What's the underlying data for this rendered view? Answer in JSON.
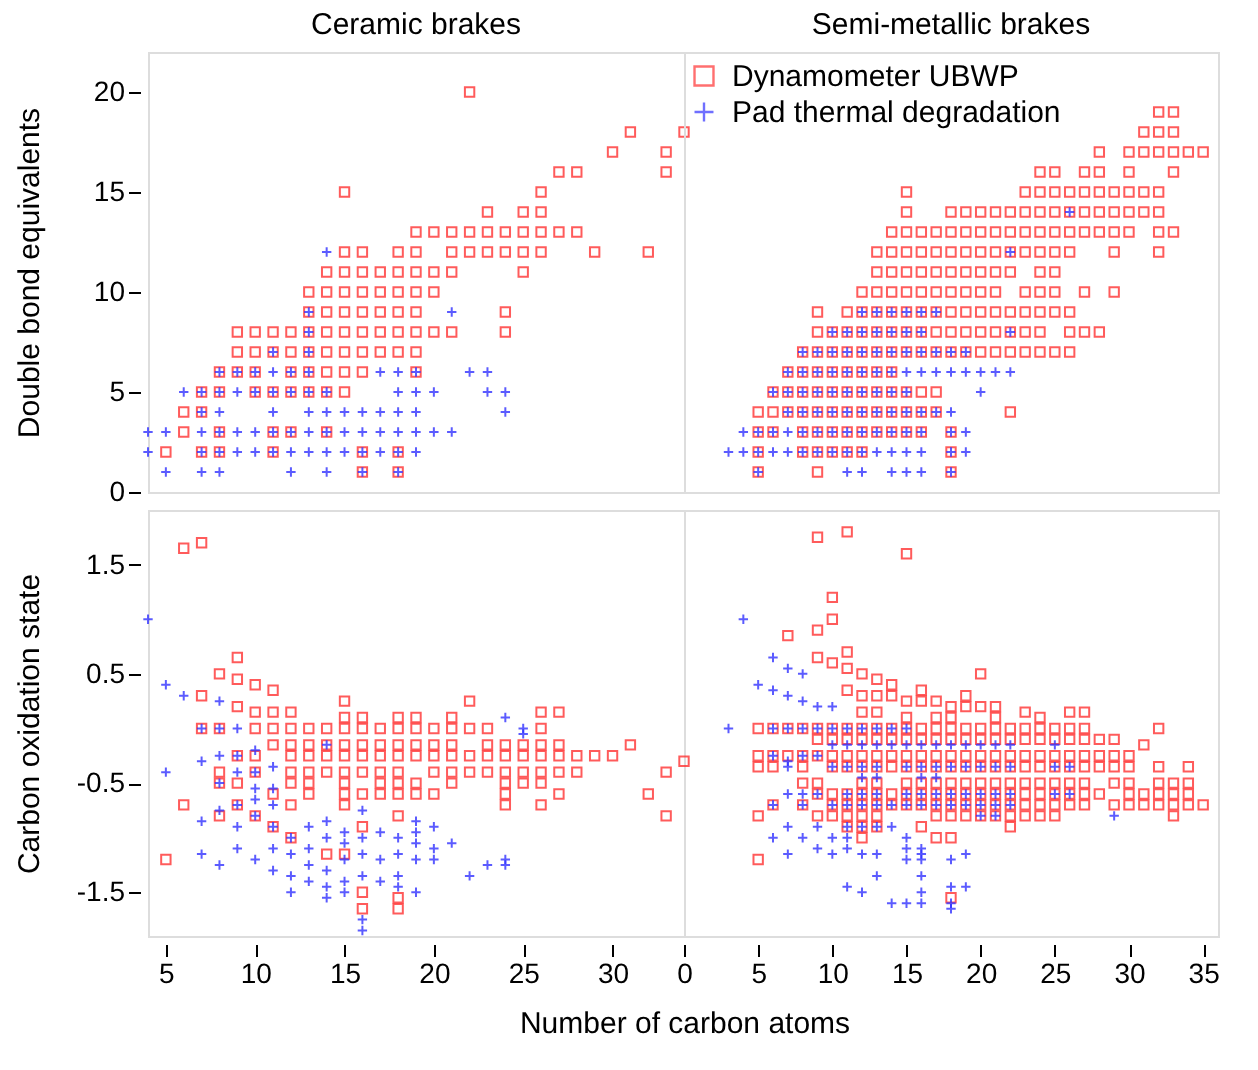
{
  "chart_data": [
    {
      "type": "scatter",
      "title": "Ceramic brakes",
      "ylabel": "Double bond equivalents",
      "xlim": [
        4,
        34
      ],
      "ylim": [
        0,
        22
      ],
      "yticks": [
        0,
        5,
        10,
        15,
        20
      ],
      "tick_labels": "y",
      "series": [
        {
          "color": "#ff3333",
          "marker": "square",
          "x": [
            22,
            31,
            34,
            30,
            33,
            27,
            28,
            33,
            15,
            26,
            23,
            25,
            26,
            19,
            20,
            21,
            22,
            23,
            24,
            25,
            26,
            27,
            28,
            15,
            16,
            18,
            19,
            21,
            22,
            23,
            24,
            25,
            26,
            29,
            32,
            14,
            15,
            16,
            17,
            18,
            19,
            20,
            21,
            25,
            13,
            14,
            15,
            16,
            17,
            18,
            19,
            20,
            13,
            14,
            15,
            16,
            17,
            18,
            19,
            24,
            9,
            10,
            11,
            12,
            13,
            14,
            15,
            16,
            17,
            18,
            19,
            20,
            21,
            24,
            9,
            10,
            11,
            12,
            13,
            14,
            15,
            16,
            17,
            18,
            19,
            8,
            9,
            10,
            12,
            13,
            14,
            15,
            16,
            19,
            7,
            8,
            10,
            11,
            12,
            13,
            14,
            15,
            6,
            7,
            6,
            8,
            11,
            12,
            14,
            5,
            7,
            8,
            11,
            16,
            18,
            16,
            18
          ],
          "values": [
            20,
            18,
            18,
            17,
            17,
            16,
            16,
            16,
            15,
            15,
            14,
            14,
            14,
            13,
            13,
            13,
            13,
            13,
            13,
            13,
            13,
            13,
            13,
            12,
            12,
            12,
            12,
            12,
            12,
            12,
            12,
            12,
            12,
            12,
            12,
            11,
            11,
            11,
            11,
            11,
            11,
            11,
            11,
            11,
            10,
            10,
            10,
            10,
            10,
            10,
            10,
            10,
            9,
            9,
            9,
            9,
            9,
            9,
            9,
            9,
            8,
            8,
            8,
            8,
            8,
            8,
            8,
            8,
            8,
            8,
            8,
            8,
            8,
            8,
            7,
            7,
            7,
            7,
            7,
            7,
            7,
            7,
            7,
            7,
            7,
            6,
            6,
            6,
            6,
            6,
            6,
            6,
            6,
            6,
            5,
            5,
            5,
            5,
            5,
            5,
            5,
            5,
            4,
            4,
            3,
            3,
            3,
            3,
            3,
            2,
            2,
            2,
            2,
            2,
            2,
            1,
            1
          ]
        },
        {
          "color": "#3333ff",
          "marker": "cross",
          "x": [
            14,
            13,
            21,
            13,
            11,
            13,
            8,
            9,
            10,
            11,
            12,
            13,
            17,
            18,
            19,
            22,
            23,
            6,
            7,
            8,
            9,
            10,
            11,
            12,
            13,
            14,
            18,
            19,
            20,
            23,
            24,
            7,
            8,
            11,
            13,
            14,
            15,
            16,
            17,
            18,
            19,
            24,
            4,
            5,
            7,
            8,
            9,
            10,
            11,
            12,
            13,
            14,
            15,
            16,
            17,
            18,
            19,
            20,
            21,
            4,
            7,
            8,
            9,
            10,
            11,
            12,
            13,
            14,
            15,
            16,
            17,
            18,
            19,
            5,
            7,
            8,
            12,
            14,
            16,
            18
          ],
          "values": [
            12,
            9,
            9,
            8,
            7,
            7,
            6,
            6,
            6,
            6,
            6,
            6,
            6,
            6,
            6,
            6,
            6,
            5,
            5,
            5,
            5,
            5,
            5,
            5,
            5,
            5,
            5,
            5,
            5,
            5,
            5,
            4,
            4,
            4,
            4,
            4,
            4,
            4,
            4,
            4,
            4,
            4,
            3,
            3,
            3,
            3,
            3,
            3,
            3,
            3,
            3,
            3,
            3,
            3,
            3,
            3,
            3,
            3,
            3,
            2,
            2,
            2,
            2,
            2,
            2,
            2,
            2,
            2,
            2,
            2,
            2,
            2,
            2,
            1,
            1,
            1,
            1,
            1,
            1,
            1
          ]
        }
      ]
    },
    {
      "type": "scatter",
      "title": "Semi-metallic brakes",
      "xlim": [
        0,
        36
      ],
      "ylim": [
        0,
        22
      ],
      "tick_labels": false,
      "legend": "top left",
      "series": [
        {
          "name": "Dynamometer UBWP",
          "color": "#ff3333",
          "marker": "square",
          "x": [
            32,
            33,
            31,
            32,
            33,
            28,
            30,
            31,
            32,
            33,
            34,
            35,
            24,
            25,
            27,
            28,
            30,
            33,
            15,
            23,
            24,
            25,
            26,
            27,
            28,
            29,
            30,
            31,
            32,
            15,
            18,
            19,
            20,
            21,
            22,
            23,
            24,
            25,
            26,
            27,
            28,
            29,
            30,
            31,
            32,
            14,
            15,
            16,
            17,
            18,
            19,
            20,
            21,
            22,
            23,
            24,
            25,
            26,
            27,
            28,
            29,
            30,
            32,
            33,
            13,
            14,
            15,
            16,
            17,
            18,
            19,
            20,
            21,
            22,
            23,
            24,
            25,
            26,
            29,
            32,
            13,
            14,
            15,
            16,
            17,
            18,
            19,
            20,
            21,
            22,
            24,
            25,
            12,
            13,
            14,
            15,
            16,
            17,
            18,
            19,
            20,
            21,
            23,
            24,
            25,
            27,
            29,
            9,
            11,
            12,
            13,
            14,
            15,
            16,
            17,
            18,
            19,
            20,
            21,
            22,
            23,
            24,
            25,
            26,
            9,
            10,
            11,
            12,
            13,
            14,
            15,
            16,
            17,
            18,
            19,
            20,
            21,
            22,
            23,
            24,
            26,
            27,
            28,
            8,
            9,
            10,
            11,
            12,
            13,
            14,
            15,
            16,
            17,
            18,
            19,
            20,
            21,
            22,
            23,
            24,
            25,
            26,
            7,
            8,
            9,
            10,
            11,
            12,
            13,
            14,
            6,
            7,
            8,
            9,
            10,
            11,
            12,
            13,
            14,
            15,
            16,
            17,
            5,
            6,
            7,
            8,
            9,
            10,
            11,
            12,
            13,
            14,
            15,
            16,
            17,
            22,
            5,
            6,
            8,
            9,
            10,
            11,
            12,
            13,
            14,
            15,
            16,
            18,
            5,
            8,
            9,
            10,
            11,
            12,
            18,
            5,
            9,
            18
          ],
          "values": [
            19,
            19,
            18,
            18,
            18,
            17,
            17,
            17,
            17,
            17,
            17,
            17,
            16,
            16,
            16,
            16,
            16,
            16,
            15,
            15,
            15,
            15,
            15,
            15,
            15,
            15,
            15,
            15,
            15,
            14,
            14,
            14,
            14,
            14,
            14,
            14,
            14,
            14,
            14,
            14,
            14,
            14,
            14,
            14,
            14,
            13,
            13,
            13,
            13,
            13,
            13,
            13,
            13,
            13,
            13,
            13,
            13,
            13,
            13,
            13,
            13,
            13,
            13,
            13,
            12,
            12,
            12,
            12,
            12,
            12,
            12,
            12,
            12,
            12,
            12,
            12,
            12,
            12,
            12,
            12,
            11,
            11,
            11,
            11,
            11,
            11,
            11,
            11,
            11,
            11,
            11,
            11,
            10,
            10,
            10,
            10,
            10,
            10,
            10,
            10,
            10,
            10,
            10,
            10,
            10,
            10,
            10,
            9,
            9,
            9,
            9,
            9,
            9,
            9,
            9,
            9,
            9,
            9,
            9,
            9,
            9,
            9,
            9,
            9,
            8,
            8,
            8,
            8,
            8,
            8,
            8,
            8,
            8,
            8,
            8,
            8,
            8,
            8,
            8,
            8,
            8,
            8,
            8,
            7,
            7,
            7,
            7,
            7,
            7,
            7,
            7,
            7,
            7,
            7,
            7,
            7,
            7,
            7,
            7,
            7,
            7,
            7,
            6,
            6,
            6,
            6,
            6,
            6,
            6,
            6,
            5,
            5,
            5,
            5,
            5,
            5,
            5,
            5,
            5,
            5,
            5,
            5,
            4,
            4,
            4,
            4,
            4,
            4,
            4,
            4,
            4,
            4,
            4,
            4,
            4,
            4,
            3,
            3,
            3,
            3,
            3,
            3,
            3,
            3,
            3,
            3,
            3,
            3,
            2,
            2,
            2,
            2,
            2,
            2,
            2,
            1,
            1,
            1
          ]
        },
        {
          "name": "Pad thermal degradation",
          "color": "#3333ff",
          "marker": "cross",
          "x": [
            26,
            22,
            12,
            13,
            14,
            15,
            16,
            17,
            10,
            11,
            12,
            13,
            14,
            15,
            16,
            22,
            8,
            9,
            10,
            11,
            12,
            13,
            14,
            15,
            16,
            17,
            18,
            19,
            7,
            8,
            9,
            10,
            11,
            12,
            13,
            14,
            15,
            16,
            17,
            18,
            19,
            20,
            21,
            22,
            6,
            7,
            8,
            9,
            10,
            11,
            12,
            13,
            14,
            15,
            20,
            7,
            8,
            9,
            10,
            11,
            12,
            13,
            14,
            15,
            16,
            17,
            18,
            4,
            5,
            6,
            7,
            8,
            9,
            10,
            11,
            12,
            13,
            14,
            15,
            16,
            18,
            19,
            3,
            4,
            5,
            6,
            7,
            8,
            9,
            10,
            11,
            12,
            13,
            14,
            15,
            16,
            18,
            19,
            5,
            11,
            12,
            14,
            15,
            16,
            18
          ],
          "values": [
            14,
            12,
            9,
            9,
            9,
            9,
            9,
            9,
            8,
            8,
            8,
            8,
            8,
            8,
            8,
            8,
            7,
            7,
            7,
            7,
            7,
            7,
            7,
            7,
            7,
            7,
            7,
            7,
            6,
            6,
            6,
            6,
            6,
            6,
            6,
            6,
            6,
            6,
            6,
            6,
            6,
            6,
            6,
            6,
            5,
            5,
            5,
            5,
            5,
            5,
            5,
            5,
            5,
            5,
            5,
            4,
            4,
            4,
            4,
            4,
            4,
            4,
            4,
            4,
            4,
            4,
            4,
            3,
            3,
            3,
            3,
            3,
            3,
            3,
            3,
            3,
            3,
            3,
            3,
            3,
            3,
            3,
            2,
            2,
            2,
            2,
            2,
            2,
            2,
            2,
            2,
            2,
            2,
            2,
            2,
            2,
            2,
            2,
            1,
            1,
            1,
            1,
            1,
            1,
            1
          ]
        }
      ]
    },
    {
      "type": "scatter",
      "ylabel": "Carbon oxidation state",
      "xlim": [
        4,
        34
      ],
      "ylim": [
        -1.9,
        2
      ],
      "xticks": [
        5,
        10,
        15,
        20,
        25,
        30
      ],
      "yticks": [
        -1.5,
        -0.5,
        0.5,
        1.5
      ],
      "series": [
        {
          "color": "#ff3333",
          "marker": "square",
          "x": [
            6,
            7,
            9,
            8,
            9,
            7,
            10,
            11,
            9,
            10,
            11,
            12,
            15,
            15,
            16,
            18,
            19,
            22,
            21,
            26,
            27,
            7,
            8,
            10,
            11,
            12,
            13,
            14,
            15,
            16,
            17,
            18,
            19,
            20,
            21,
            22,
            23,
            26,
            11,
            12,
            13,
            14,
            15,
            16,
            17,
            18,
            19,
            20,
            21,
            23,
            24,
            25,
            26,
            27,
            31,
            9,
            10,
            12,
            13,
            14,
            15,
            16,
            17,
            18,
            19,
            20,
            21,
            22,
            23,
            24,
            25,
            26,
            27,
            28,
            29,
            30,
            8,
            10,
            12,
            13,
            14,
            15,
            16,
            17,
            18,
            20,
            21,
            22,
            23,
            24,
            25,
            26,
            27,
            28,
            33,
            8,
            9,
            12,
            13,
            15,
            17,
            18,
            19,
            21,
            24,
            25,
            26,
            11,
            13,
            15,
            16,
            17,
            18,
            19,
            20,
            24,
            27,
            32,
            6,
            9,
            12,
            15,
            24,
            26,
            8,
            10,
            18,
            33,
            11,
            16,
            12,
            14,
            15,
            5,
            16,
            18,
            16,
            18
          ],
          "values": [
            1.65,
            1.7,
            0.65,
            0.5,
            0.45,
            0.3,
            0.4,
            0.35,
            0.2,
            0.15,
            0.15,
            0.15,
            0.25,
            0.1,
            0.1,
            0.1,
            0.1,
            0.25,
            0.1,
            0.15,
            0.15,
            0,
            0,
            0,
            0,
            0,
            0,
            0,
            0,
            0,
            0,
            0,
            0,
            0,
            0,
            0,
            0,
            0,
            -0.15,
            -0.15,
            -0.15,
            -0.15,
            -0.15,
            -0.15,
            -0.15,
            -0.15,
            -0.15,
            -0.15,
            -0.15,
            -0.15,
            -0.15,
            -0.15,
            -0.15,
            -0.15,
            -0.15,
            -0.25,
            -0.25,
            -0.25,
            -0.25,
            -0.25,
            -0.25,
            -0.25,
            -0.25,
            -0.25,
            -0.25,
            -0.25,
            -0.25,
            -0.25,
            -0.25,
            -0.25,
            -0.25,
            -0.25,
            -0.25,
            -0.25,
            -0.25,
            -0.25,
            -0.4,
            -0.4,
            -0.4,
            -0.4,
            -0.4,
            -0.4,
            -0.4,
            -0.4,
            -0.4,
            -0.4,
            -0.4,
            -0.4,
            -0.4,
            -0.4,
            -0.4,
            -0.4,
            -0.4,
            -0.4,
            -0.4,
            -0.5,
            -0.5,
            -0.5,
            -0.5,
            -0.5,
            -0.5,
            -0.5,
            -0.5,
            -0.5,
            -0.5,
            -0.5,
            -0.5,
            -0.6,
            -0.6,
            -0.6,
            -0.6,
            -0.6,
            -0.6,
            -0.6,
            -0.6,
            -0.6,
            -0.6,
            -0.6,
            -0.7,
            -0.7,
            -0.7,
            -0.7,
            -0.7,
            -0.7,
            -0.8,
            -0.8,
            -0.8,
            -0.8,
            -0.9,
            -0.9,
            -1,
            -1.15,
            -1.15,
            -1.2,
            -1.5,
            -1.55,
            -1.65,
            -1.65
          ]
        },
        {
          "color": "#3333ff",
          "marker": "cross",
          "x": [
            4,
            5,
            6,
            8,
            7,
            7,
            5,
            8,
            9,
            8,
            9,
            10,
            9,
            10,
            11,
            8,
            10,
            11,
            8,
            9,
            10,
            11,
            7,
            9,
            10,
            11,
            7,
            8,
            9,
            10,
            11,
            11,
            12,
            12,
            12,
            12,
            13,
            13,
            13,
            13,
            14,
            14,
            14,
            14,
            14,
            14,
            15,
            15,
            15,
            15,
            15,
            16,
            16,
            16,
            16,
            16,
            17,
            17,
            17,
            18,
            18,
            18,
            18,
            19,
            19,
            19,
            19,
            19,
            20,
            20,
            20,
            21,
            22,
            23,
            24,
            24,
            24,
            25,
            25,
            16
          ],
          "values": [
            1,
            0.4,
            0.3,
            0.25,
            0,
            -0.3,
            -0.4,
            0,
            0,
            -0.25,
            -0.25,
            -0.2,
            -0.4,
            -0.4,
            -0.35,
            -0.5,
            -0.55,
            -0.55,
            -0.75,
            -0.7,
            -0.65,
            -0.7,
            -0.85,
            -0.9,
            -0.8,
            -0.9,
            -1.15,
            -1.25,
            -1.1,
            -1.2,
            -1.1,
            -1.3,
            -1,
            -1.15,
            -1.35,
            -1.5,
            -0.9,
            -1.1,
            -1.25,
            -1.4,
            -0.85,
            -1,
            -1.3,
            -1.45,
            -1.55,
            -0.15,
            -0.95,
            -1.05,
            -1.2,
            -1.4,
            -1.5,
            -0.75,
            -1,
            -1.15,
            -1.35,
            -1.75,
            -0.95,
            -1.2,
            -1.4,
            -1,
            -1.15,
            -1.35,
            -1.45,
            -0.85,
            -0.95,
            -1.05,
            -1.2,
            -1.5,
            -0.9,
            -1.1,
            -1.2,
            -1.05,
            -1.35,
            -1.25,
            -1.2,
            -1.25,
            0.1,
            0,
            -0.05,
            -1.85
          ]
        }
      ]
    },
    {
      "type": "scatter",
      "xlabel": "Number of carbon atoms",
      "xlim": [
        0,
        36
      ],
      "ylim": [
        -1.9,
        2
      ],
      "xticks": [
        0,
        5,
        10,
        15,
        20,
        25,
        30,
        35
      ],
      "tick_labels": "x",
      "series": [
        {
          "color": "#ff3333",
          "marker": "square",
          "x": [
            9,
            11,
            15,
            10,
            10,
            7,
            9,
            9,
            11,
            10,
            11,
            20,
            11,
            12,
            13,
            14,
            16,
            19,
            19,
            16,
            17,
            18,
            15,
            13,
            12,
            14,
            15,
            12,
            13,
            17,
            18,
            20,
            21,
            21,
            23,
            24,
            26,
            27,
            32,
            31,
            0,
            5,
            6,
            7,
            8,
            9,
            10,
            11,
            12,
            13,
            14,
            15,
            16,
            17,
            18,
            19,
            20,
            21,
            22,
            23,
            24,
            25,
            26,
            27,
            9,
            10,
            11,
            12,
            13,
            14,
            15,
            16,
            17,
            18,
            19,
            20,
            21,
            22,
            23,
            24,
            25,
            26,
            27,
            28,
            29,
            5,
            6,
            7,
            8,
            9,
            10,
            11,
            12,
            13,
            14,
            15,
            16,
            17,
            18,
            19,
            20,
            21,
            22,
            23,
            24,
            25,
            26,
            27,
            28,
            29,
            30,
            5,
            6,
            8,
            10,
            11,
            12,
            13,
            14,
            15,
            16,
            17,
            18,
            19,
            20,
            21,
            22,
            23,
            24,
            25,
            26,
            27,
            28,
            29,
            30,
            32,
            34,
            8,
            9,
            12,
            13,
            15,
            16,
            17,
            18,
            19,
            20,
            21,
            22,
            23,
            24,
            25,
            26,
            27,
            29,
            30,
            32,
            33,
            34,
            9,
            10,
            11,
            12,
            13,
            14,
            15,
            16,
            17,
            18,
            19,
            20,
            21,
            22,
            23,
            24,
            25,
            26,
            27,
            28,
            30,
            31,
            32,
            33,
            34,
            6,
            8,
            10,
            11,
            12,
            13,
            14,
            15,
            16,
            17,
            18,
            19,
            20,
            21,
            22,
            23,
            24,
            25,
            26,
            27,
            29,
            30,
            31,
            32,
            33,
            34,
            35,
            5,
            9,
            10,
            11,
            12,
            13,
            17,
            18,
            19,
            20,
            21,
            22,
            23,
            24,
            25,
            33,
            11,
            12,
            13,
            16,
            22,
            12,
            17,
            18,
            5,
            18
          ],
          "values": [
            1.75,
            1.8,
            1.6,
            1.2,
            1,
            0.85,
            0.9,
            0.65,
            0.7,
            0.6,
            0.55,
            0.5,
            0.35,
            0.5,
            0.45,
            0.4,
            0.35,
            0.3,
            0.2,
            0.25,
            0.25,
            0.2,
            0.25,
            0.3,
            0.3,
            0.3,
            0.1,
            0.15,
            0.15,
            0.1,
            0.1,
            0.2,
            0.2,
            0.1,
            0.15,
            0.1,
            0.15,
            0.15,
            0,
            -0.15,
            -0.3,
            0,
            0,
            0,
            0,
            0,
            0,
            0,
            0,
            0,
            0,
            0,
            0,
            0,
            0,
            0,
            0,
            0,
            0,
            0,
            0,
            0,
            0,
            0,
            -0.1,
            -0.1,
            -0.1,
            -0.1,
            -0.1,
            -0.1,
            -0.1,
            -0.1,
            -0.1,
            -0.1,
            -0.1,
            -0.1,
            -0.1,
            -0.1,
            -0.1,
            -0.1,
            -0.1,
            -0.1,
            -0.1,
            -0.1,
            -0.1,
            -0.25,
            -0.25,
            -0.25,
            -0.25,
            -0.25,
            -0.25,
            -0.25,
            -0.25,
            -0.25,
            -0.25,
            -0.25,
            -0.25,
            -0.25,
            -0.25,
            -0.25,
            -0.25,
            -0.25,
            -0.25,
            -0.25,
            -0.25,
            -0.25,
            -0.25,
            -0.25,
            -0.25,
            -0.25,
            -0.25,
            -0.35,
            -0.35,
            -0.35,
            -0.35,
            -0.35,
            -0.35,
            -0.35,
            -0.35,
            -0.35,
            -0.35,
            -0.35,
            -0.35,
            -0.35,
            -0.35,
            -0.35,
            -0.35,
            -0.35,
            -0.35,
            -0.35,
            -0.35,
            -0.35,
            -0.35,
            -0.35,
            -0.35,
            -0.35,
            -0.35,
            -0.5,
            -0.5,
            -0.5,
            -0.5,
            -0.5,
            -0.5,
            -0.5,
            -0.5,
            -0.5,
            -0.5,
            -0.5,
            -0.5,
            -0.5,
            -0.5,
            -0.5,
            -0.5,
            -0.5,
            -0.5,
            -0.5,
            -0.5,
            -0.5,
            -0.5,
            -0.6,
            -0.6,
            -0.6,
            -0.6,
            -0.6,
            -0.6,
            -0.6,
            -0.6,
            -0.6,
            -0.6,
            -0.6,
            -0.6,
            -0.6,
            -0.6,
            -0.6,
            -0.6,
            -0.6,
            -0.6,
            -0.6,
            -0.6,
            -0.6,
            -0.6,
            -0.6,
            -0.6,
            -0.6,
            -0.7,
            -0.7,
            -0.7,
            -0.7,
            -0.7,
            -0.7,
            -0.7,
            -0.7,
            -0.7,
            -0.7,
            -0.7,
            -0.7,
            -0.7,
            -0.7,
            -0.7,
            -0.7,
            -0.7,
            -0.7,
            -0.7,
            -0.7,
            -0.7,
            -0.7,
            -0.7,
            -0.7,
            -0.7,
            -0.7,
            -0.7,
            -0.8,
            -0.8,
            -0.8,
            -0.8,
            -0.8,
            -0.8,
            -0.8,
            -0.8,
            -0.8,
            -0.8,
            -0.8,
            -0.8,
            -0.8,
            -0.8,
            -0.8,
            -0.8,
            -0.9,
            -0.9,
            -0.9,
            -0.9,
            -0.9,
            -1,
            -1,
            -1,
            -1.2,
            -1.55
          ]
        },
        {
          "color": "#3333ff",
          "marker": "cross",
          "x": [
            4,
            6,
            7,
            3,
            8,
            7,
            8,
            9,
            10,
            6,
            5,
            6,
            7,
            8,
            9,
            10,
            11,
            12,
            13,
            14,
            15,
            7,
            10,
            11,
            12,
            13,
            14,
            15,
            16,
            17,
            18,
            19,
            20,
            21,
            22,
            25,
            6,
            8,
            9,
            7,
            10,
            11,
            12,
            13,
            15,
            16,
            17,
            18,
            19,
            20,
            21,
            22,
            25,
            26,
            12,
            13,
            16,
            17,
            7,
            8,
            9,
            11,
            12,
            13,
            15,
            16,
            17,
            18,
            19,
            20,
            21,
            22,
            25,
            26,
            6,
            8,
            10,
            11,
            12,
            13,
            14,
            15,
            16,
            17,
            18,
            19,
            20,
            21,
            22,
            20,
            21,
            29,
            7,
            9,
            11,
            12,
            13,
            14,
            6,
            8,
            10,
            11,
            15,
            9,
            11,
            15,
            16,
            7,
            10,
            12,
            13,
            16,
            19,
            15,
            16,
            18,
            13,
            16,
            11,
            18,
            19,
            12,
            16,
            14,
            15,
            16,
            18,
            18
          ],
          "values": [
            1,
            0.65,
            0.55,
            0,
            0.5,
            0.3,
            0.25,
            0.2,
            0.2,
            0.35,
            0.4,
            0,
            0,
            0,
            0,
            0,
            0,
            0,
            0,
            0,
            0,
            -0.3,
            -0.15,
            -0.15,
            -0.15,
            -0.15,
            -0.15,
            -0.15,
            -0.15,
            -0.15,
            -0.15,
            -0.15,
            -0.15,
            -0.15,
            -0.15,
            -0.15,
            -0.25,
            -0.25,
            -0.25,
            -0.35,
            -0.35,
            -0.35,
            -0.35,
            -0.35,
            -0.35,
            -0.35,
            -0.35,
            -0.35,
            -0.35,
            -0.35,
            -0.35,
            -0.35,
            -0.35,
            -0.35,
            -0.45,
            -0.45,
            -0.45,
            -0.45,
            -0.6,
            -0.6,
            -0.6,
            -0.6,
            -0.6,
            -0.6,
            -0.6,
            -0.6,
            -0.6,
            -0.6,
            -0.6,
            -0.6,
            -0.6,
            -0.6,
            -0.6,
            -0.6,
            -0.7,
            -0.7,
            -0.7,
            -0.7,
            -0.7,
            -0.7,
            -0.7,
            -0.7,
            -0.7,
            -0.7,
            -0.7,
            -0.7,
            -0.7,
            -0.7,
            -0.7,
            -0.8,
            -0.8,
            -0.8,
            -0.9,
            -0.9,
            -0.9,
            -0.9,
            -0.9,
            -0.9,
            -1,
            -1,
            -1,
            -1,
            -1,
            -1.1,
            -1.1,
            -1.1,
            -1.1,
            -1.15,
            -1.15,
            -1.15,
            -1.15,
            -1.15,
            -1.15,
            -1.2,
            -1.2,
            -1.2,
            -1.35,
            -1.35,
            -1.45,
            -1.45,
            -1.45,
            -1.5,
            -1.5,
            -1.6,
            -1.6,
            -1.6,
            -1.6,
            -1.65
          ]
        }
      ]
    }
  ]
}
